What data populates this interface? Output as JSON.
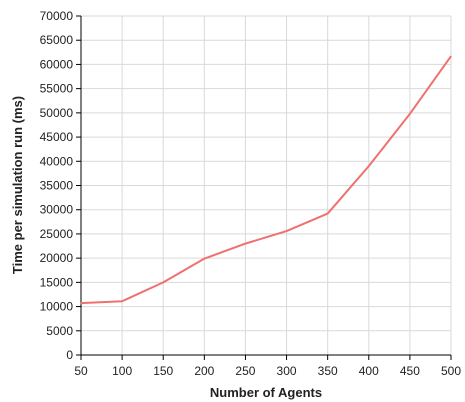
{
  "chart_data": {
    "type": "line",
    "title": "",
    "xlabel": "Number of Agents",
    "ylabel": "Time per simulation run (ms)",
    "xlim": [
      50,
      500
    ],
    "ylim": [
      0,
      70000
    ],
    "x_ticks": [
      50,
      100,
      150,
      200,
      250,
      300,
      350,
      400,
      450,
      500
    ],
    "y_ticks": [
      0,
      5000,
      10000,
      15000,
      20000,
      25000,
      30000,
      35000,
      40000,
      45000,
      50000,
      55000,
      60000,
      65000,
      70000
    ],
    "grid": true,
    "legend": "none",
    "series": [
      {
        "color": "#f07070",
        "x": [
          50,
          100,
          150,
          200,
          250,
          300,
          350,
          400,
          450,
          500
        ],
        "y": [
          10700,
          11100,
          15000,
          19900,
          23000,
          25600,
          29200,
          39000,
          49800,
          61700
        ]
      }
    ]
  }
}
